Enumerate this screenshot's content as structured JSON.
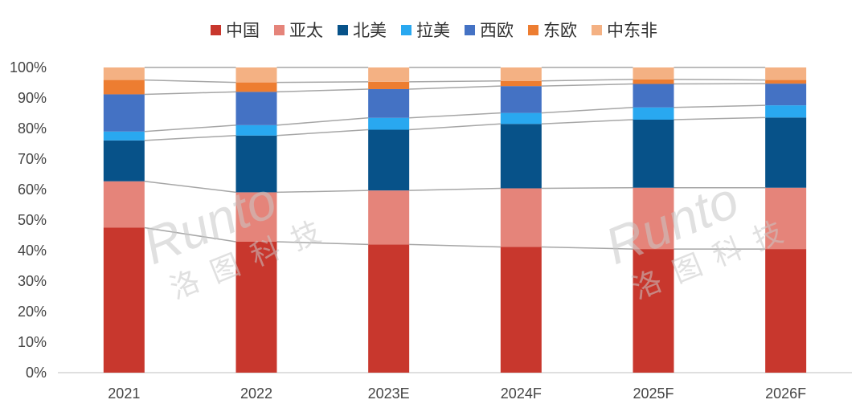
{
  "chart_data": {
    "type": "bar",
    "stacked": true,
    "percent": true,
    "title": "",
    "xlabel": "",
    "ylabel": "",
    "ylim": [
      0,
      100
    ],
    "yticks": [
      "0%",
      "10%",
      "20%",
      "30%",
      "40%",
      "50%",
      "60%",
      "70%",
      "80%",
      "90%",
      "100%"
    ],
    "categories": [
      "2021",
      "2022",
      "2023E",
      "2024F",
      "2025F",
      "2026F"
    ],
    "legend_position": "top",
    "grid": false,
    "series_connector_lines": true,
    "series": [
      {
        "name": "中国",
        "color": "#C8372D",
        "values": [
          47.5,
          42.9,
          42.0,
          41.2,
          40.5,
          40.5
        ]
      },
      {
        "name": "亚太",
        "color": "#E5847A",
        "values": [
          15.2,
          16.2,
          17.7,
          19.2,
          20.1,
          20.1
        ]
      },
      {
        "name": "北美",
        "color": "#075289",
        "values": [
          13.4,
          18.6,
          19.9,
          21.1,
          22.3,
          23.0
        ]
      },
      {
        "name": "拉美",
        "color": "#29A8F0",
        "values": [
          2.9,
          3.4,
          3.9,
          3.6,
          4.0,
          4.0
        ]
      },
      {
        "name": "西欧",
        "color": "#4472C4",
        "values": [
          12.2,
          10.9,
          9.4,
          8.8,
          7.7,
          7.1
        ]
      },
      {
        "name": "东欧",
        "color": "#ED7D31",
        "values": [
          4.7,
          3.1,
          2.4,
          1.7,
          1.5,
          1.2
        ]
      },
      {
        "name": "中东非",
        "color": "#F4B183",
        "values": [
          4.1,
          4.9,
          4.7,
          4.4,
          3.9,
          4.1
        ]
      }
    ]
  },
  "watermark": {
    "text": "Runto",
    "subtext": "洛图科技"
  }
}
